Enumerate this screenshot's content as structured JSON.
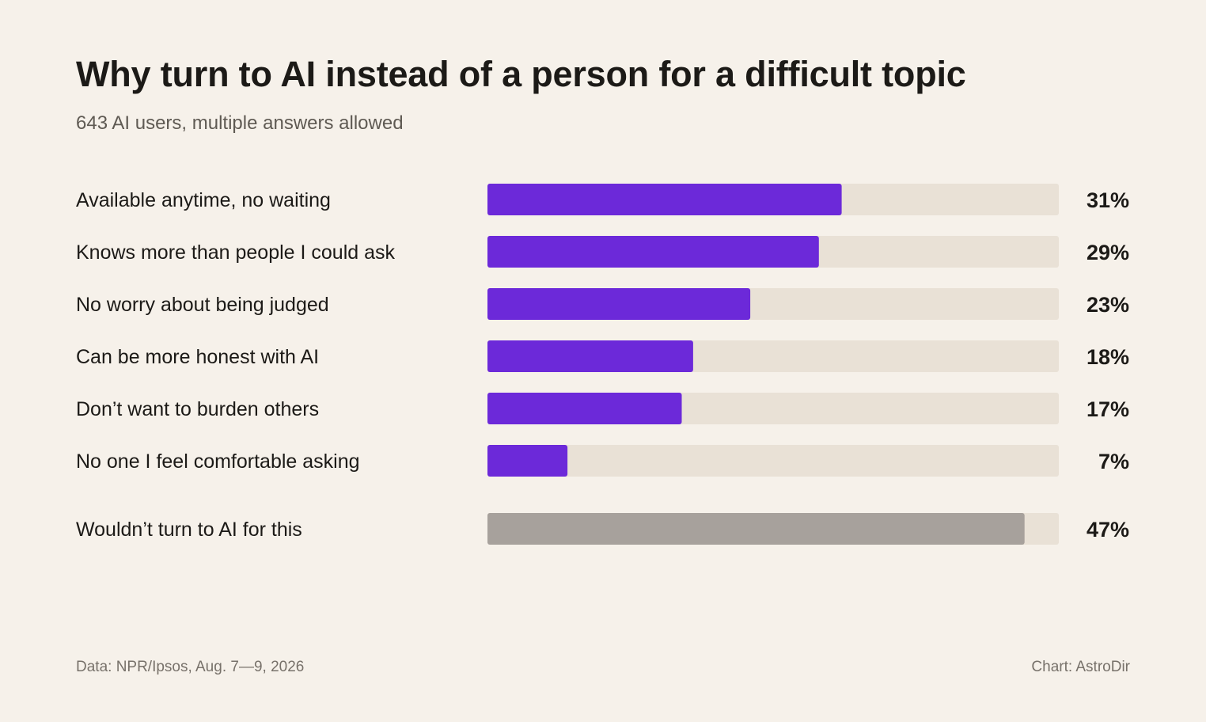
{
  "title": "Why turn to AI instead of a person for a difficult topic",
  "subtitle": "643 AI users, multiple answers allowed",
  "source": "Data: NPR/Ipsos, Aug. 7—9, 2026",
  "credit": "Chart: AstroDir",
  "colors": {
    "accent": "#6c29d9",
    "neutral_bar": "#a7a19c",
    "track": "#e9e1d6",
    "background": "#f6f1ea"
  },
  "chart_data": {
    "type": "bar",
    "orientation": "horizontal",
    "categories": [
      "Available anytime, no waiting",
      "Knows more than people I could ask",
      "No worry about being judged",
      "Can be more honest with AI",
      "Don’t want to burden others",
      "No one I feel comfortable asking",
      "Wouldn’t turn to AI for this"
    ],
    "values": [
      31,
      29,
      23,
      18,
      17,
      7,
      47
    ],
    "value_labels": [
      "31%",
      "29%",
      "23%",
      "18%",
      "17%",
      "7%",
      "47%"
    ],
    "highlight": [
      true,
      true,
      true,
      true,
      true,
      true,
      false
    ],
    "xlim": [
      0,
      50
    ],
    "unit": "%",
    "grid": false,
    "legend": "none"
  }
}
